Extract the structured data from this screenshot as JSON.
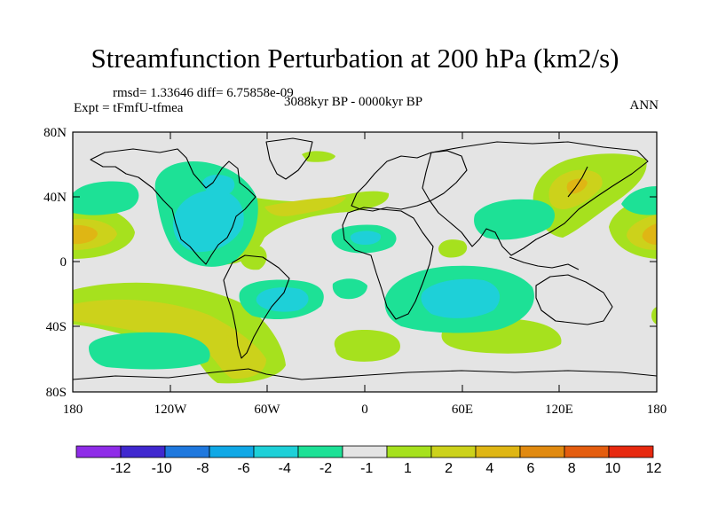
{
  "title": "Streamfunction Perturbation at 200 hPa (km2/s)",
  "stats": "rmsd= 1.33646 diff= 6.75858e-09",
  "experiment": "Expt = tFmfU-tfmea",
  "period": "3088kyr BP - 0000kyr BP",
  "season": "ANN",
  "lat_ticks": [
    "80N",
    "40N",
    "0",
    "40S",
    "80S"
  ],
  "lon_ticks": [
    "180",
    "120W",
    "60W",
    "0",
    "60E",
    "120E",
    "180"
  ],
  "colorbar": {
    "labels": [
      "-12",
      "-10",
      "-8",
      "-6",
      "-4",
      "-2",
      "-1",
      "1",
      "2",
      "4",
      "6",
      "8",
      "10",
      "12"
    ],
    "colors": [
      "#8f2ce8",
      "#4028cf",
      "#1f78de",
      "#10a8e6",
      "#1ed0d8",
      "#1de196",
      "#e4e4e4",
      "#a6e11e",
      "#ccd21b",
      "#dfb614",
      "#e18a10",
      "#e45d0f",
      "#e7290f"
    ]
  },
  "colors": {
    "pos1": "#a6e11e",
    "pos2": "#ccd21b",
    "pos3": "#dfb614",
    "neg1": "#1de196",
    "neg2": "#1ed0d8",
    "background": "#e4e4e4"
  }
}
